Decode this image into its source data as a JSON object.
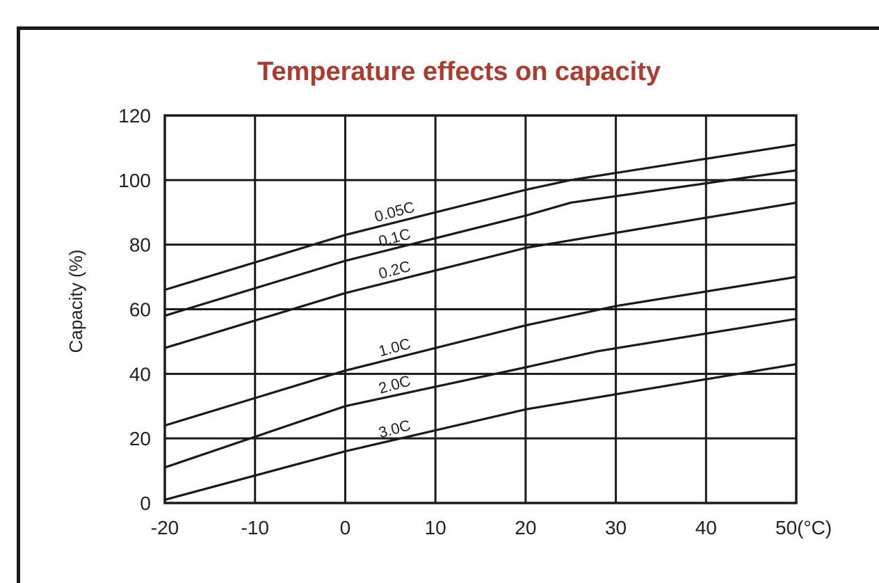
{
  "chart_data": {
    "type": "line",
    "title": "Temperature effects on capacity",
    "xlabel": "",
    "ylabel": "Capacity (%)",
    "xlim": [
      -20,
      50
    ],
    "ylim": [
      0,
      120
    ],
    "x_ticks": [
      "-20",
      "-10",
      "0",
      "10",
      "20",
      "30",
      "40",
      "50(°C)"
    ],
    "y_ticks": [
      "0",
      "20",
      "40",
      "60",
      "80",
      "100",
      "120"
    ],
    "grid": true,
    "series": [
      {
        "name": "0.05C",
        "points": [
          [
            -20,
            66
          ],
          [
            0,
            83
          ],
          [
            20,
            97
          ],
          [
            25,
            100
          ],
          [
            50,
            111
          ]
        ]
      },
      {
        "name": "0.1C",
        "points": [
          [
            -20,
            58
          ],
          [
            0,
            75
          ],
          [
            20,
            89
          ],
          [
            25,
            93
          ],
          [
            50,
            103
          ]
        ]
      },
      {
        "name": "0.2C",
        "points": [
          [
            -20,
            48
          ],
          [
            0,
            65
          ],
          [
            20,
            79
          ],
          [
            50,
            93
          ]
        ]
      },
      {
        "name": "1.0C",
        "points": [
          [
            -20,
            24
          ],
          [
            0,
            41
          ],
          [
            20,
            55
          ],
          [
            30,
            61
          ],
          [
            50,
            70
          ]
        ]
      },
      {
        "name": "2.0C",
        "points": [
          [
            -20,
            11
          ],
          [
            0,
            30
          ],
          [
            20,
            42
          ],
          [
            28,
            47
          ],
          [
            50,
            57
          ]
        ]
      },
      {
        "name": "3.0C",
        "points": [
          [
            -20,
            1
          ],
          [
            0,
            16
          ],
          [
            20,
            29
          ],
          [
            50,
            43
          ]
        ]
      }
    ]
  }
}
